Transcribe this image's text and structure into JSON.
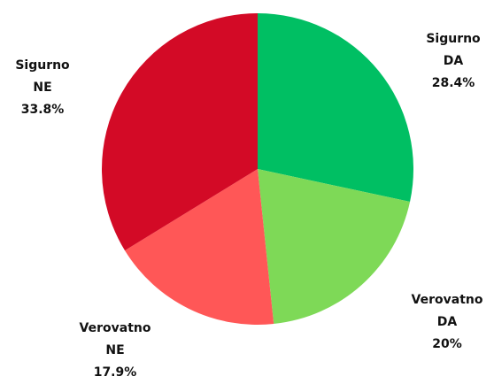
{
  "chart_data": {
    "type": "pie",
    "categories": [
      "Sigurno DA",
      "Verovatno DA",
      "Verovatno NE",
      "Sigurno NE"
    ],
    "values": [
      28.4,
      20,
      17.9,
      33.8
    ],
    "value_labels": [
      "28.4%",
      "20%",
      "17.9%",
      "33.8%"
    ],
    "colors": [
      "#00bf63",
      "#7ed957",
      "#ff5757",
      "#d30a26"
    ]
  }
}
